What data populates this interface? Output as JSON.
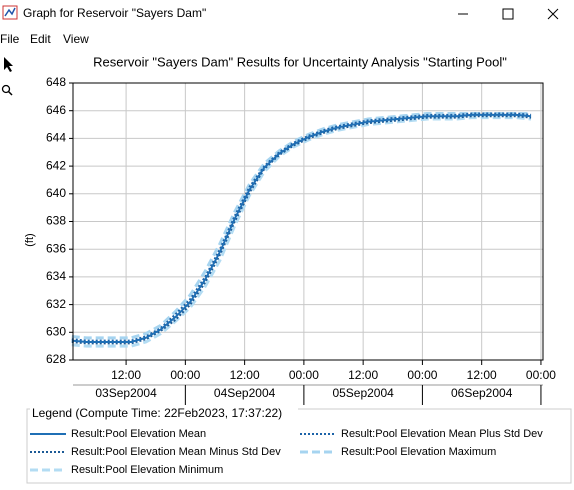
{
  "window": {
    "title": "Graph for Reservoir \"Sayers Dam\"",
    "menu": [
      "File",
      "Edit",
      "View"
    ]
  },
  "chart_data": {
    "type": "line",
    "title": "Reservoir \"Sayers Dam\" Results for Uncertainty Analysis \"Starting Pool\"",
    "y_label": "(ft)",
    "x": [
      "2004-09-03T01:00",
      "2004-09-03T04:00",
      "2004-09-03T07:00",
      "2004-09-03T10:00",
      "2004-09-03T13:00",
      "2004-09-03T16:00",
      "2004-09-03T19:00",
      "2004-09-03T22:00",
      "2004-09-04T01:00",
      "2004-09-04T04:00",
      "2004-09-04T07:00",
      "2004-09-04T10:00",
      "2004-09-04T13:00",
      "2004-09-04T16:00",
      "2004-09-04T19:00",
      "2004-09-04T22:00",
      "2004-09-05T01:00",
      "2004-09-05T04:00",
      "2004-09-05T07:00",
      "2004-09-05T10:00",
      "2004-09-05T13:00",
      "2004-09-05T16:00",
      "2004-09-05T19:00",
      "2004-09-05T22:00",
      "2004-09-06T01:00",
      "2004-09-06T04:00",
      "2004-09-06T07:00",
      "2004-09-06T10:00",
      "2004-09-06T13:00",
      "2004-09-06T16:00",
      "2004-09-06T19:00",
      "2004-09-06T22:00"
    ],
    "series": [
      {
        "name": "Result:Pool Elevation Maximum",
        "color": "#a6d4f0",
        "style": "dashed",
        "values": [
          629.7,
          629.6,
          629.6,
          629.6,
          629.6,
          629.9,
          630.5,
          631.5,
          632.7,
          634.4,
          636.4,
          638.7,
          640.7,
          642.2,
          643.1,
          643.8,
          644.3,
          644.7,
          645.0,
          645.2,
          645.4,
          645.5,
          645.6,
          645.7,
          645.8,
          645.8,
          645.8,
          645.8,
          645.8,
          645.8,
          645.8,
          645.8
        ]
      },
      {
        "name": "Result:Pool Elevation Minimum",
        "color": "#b3dcf3",
        "style": "dashed",
        "values": [
          629.1,
          629.0,
          629.0,
          629.0,
          629.0,
          629.3,
          629.9,
          630.8,
          631.8,
          633.3,
          635.2,
          637.7,
          639.9,
          641.6,
          642.7,
          643.4,
          643.9,
          644.3,
          644.6,
          644.8,
          645.0,
          645.1,
          645.2,
          645.3,
          645.4,
          645.4,
          645.4,
          645.5,
          645.5,
          645.5,
          645.5,
          645.4
        ]
      },
      {
        "name": "Result:Pool Elevation Mean Plus Std Dev",
        "color": "#1c63a8",
        "style": "dotted",
        "values": [
          629.5,
          629.4,
          629.4,
          629.4,
          629.4,
          629.7,
          630.3,
          631.3,
          632.4,
          634.0,
          636.0,
          638.4,
          640.5,
          642.0,
          643.0,
          643.7,
          644.2,
          644.6,
          644.9,
          645.1,
          645.3,
          645.4,
          645.5,
          645.6,
          645.7,
          645.7,
          645.7,
          645.8,
          645.8,
          645.8,
          645.8,
          645.7
        ]
      },
      {
        "name": "Result:Pool Elevation Mean Minus Std Dev",
        "color": "#1c5a96",
        "style": "dotted",
        "values": [
          629.3,
          629.2,
          629.2,
          629.2,
          629.2,
          629.5,
          630.1,
          630.9,
          632.0,
          633.6,
          635.6,
          638.0,
          640.1,
          641.8,
          642.8,
          643.5,
          644.0,
          644.4,
          644.7,
          644.9,
          645.1,
          645.2,
          645.3,
          645.4,
          645.5,
          645.5,
          645.5,
          645.6,
          645.6,
          645.6,
          645.6,
          645.5
        ]
      },
      {
        "name": "Result:Pool Elevation Mean",
        "color": "#1f6fb5",
        "style": "solid",
        "values": [
          629.4,
          629.3,
          629.3,
          629.3,
          629.3,
          629.6,
          630.2,
          631.1,
          632.2,
          633.8,
          635.8,
          638.2,
          640.3,
          641.9,
          642.9,
          643.6,
          644.1,
          644.5,
          644.8,
          645.0,
          645.2,
          645.3,
          645.4,
          645.5,
          645.6,
          645.6,
          645.6,
          645.7,
          645.7,
          645.7,
          645.7,
          645.6
        ]
      }
    ],
    "xlim": [
      "2004-09-03T01:15",
      "2004-09-07T00:25"
    ],
    "xticks": [
      {
        "value": "2004-09-03T12:00",
        "label": "12:00"
      },
      {
        "value": "2004-09-04T00:00",
        "label": "00:00"
      },
      {
        "value": "2004-09-04T12:00",
        "label": "12:00"
      },
      {
        "value": "2004-09-05T00:00",
        "label": "00:00"
      },
      {
        "value": "2004-09-05T12:00",
        "label": "12:00"
      },
      {
        "value": "2004-09-06T00:00",
        "label": "00:00"
      },
      {
        "value": "2004-09-06T12:00",
        "label": "12:00"
      },
      {
        "value": "2004-09-07T00:00",
        "label": "00:00"
      }
    ],
    "xdates": [
      {
        "value": "2004-09-03T12:00",
        "label": "03Sep2004"
      },
      {
        "value": "2004-09-04T12:00",
        "label": "04Sep2004"
      },
      {
        "value": "2004-09-05T12:00",
        "label": "05Sep2004"
      },
      {
        "value": "2004-09-06T12:00",
        "label": "06Sep2004"
      }
    ],
    "ylim": [
      628,
      648
    ],
    "yticks": [
      628,
      630,
      632,
      634,
      636,
      638,
      640,
      642,
      644,
      646,
      648
    ],
    "grid": true,
    "legend_title": "Legend (Compute Time: 22Feb2023, 17:37:22)"
  }
}
